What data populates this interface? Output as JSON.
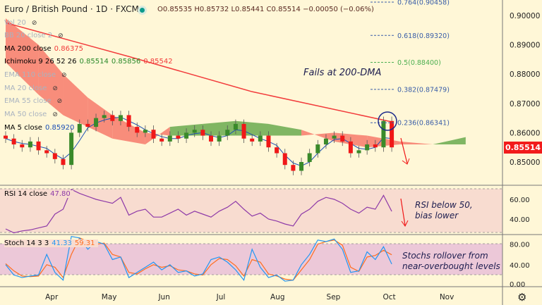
{
  "header": {
    "title": "Euro / British Pound · 1D · FXCM",
    "ohlc": "O0.85535 H0.85732 L0.85441 C0.85514 −0.00050 (−0.06%)"
  },
  "legend": [
    {
      "label": "Vol 20",
      "value": "",
      "hidden": true
    },
    {
      "label": "BB 20 close 2",
      "value": "",
      "hidden": true
    },
    {
      "label": "MA 200 close",
      "value": "0.86375",
      "color": "#f23b3b",
      "hidden": false
    },
    {
      "label": "Ichimoku 9 26 52 26",
      "value": "0.85514",
      "value2": "0.85856",
      "value3": "0.85542",
      "hidden": false
    },
    {
      "label": "EMA 110 close",
      "value": "",
      "hidden": true
    },
    {
      "label": "MA 20 close",
      "value": "",
      "hidden": true
    },
    {
      "label": "EMA 55 close",
      "value": "",
      "hidden": true
    },
    {
      "label": "MA 50 close",
      "value": "",
      "hidden": true
    },
    {
      "label": "MA 5 close",
      "value": "0.85920",
      "color": "#1b4fb6",
      "hidden": false
    }
  ],
  "annotations": {
    "main": "Fails at 200-DMA",
    "rsi_line1": "RSI below 50,",
    "rsi_line2": "bias lower",
    "stoch_line1": "Stochs rollover from",
    "stoch_line2": "near-overbought levels"
  },
  "rsi_legend": {
    "label": "RSI 14 close",
    "value": "47.80"
  },
  "stoch_legend": {
    "label": "Stoch 14 3 3",
    "k": "41.33",
    "d": "59.31"
  },
  "last_price": "0.85514",
  "colors": {
    "up": "#3a8a2a",
    "down": "#f01818",
    "ma200": "#f23b3b",
    "cloud_red": "#f77a6b",
    "cloud_green": "#6aaa4f",
    "rsi": "#8e3aa8",
    "stoch_k": "#2196f3",
    "stoch_d": "#ff6d1f"
  },
  "chart_data": {
    "type": "candlestick",
    "title": "Euro / British Pound · 1D · FXCM",
    "closes": [
      0.858,
      0.856,
      0.855,
      0.857,
      0.854,
      0.853,
      0.851,
      0.849,
      0.86,
      0.863,
      0.862,
      0.865,
      0.866,
      0.864,
      0.866,
      0.862,
      0.86,
      0.861,
      0.858,
      0.857,
      0.859,
      0.858,
      0.86,
      0.861,
      0.859,
      0.857,
      0.859,
      0.861,
      0.863,
      0.858,
      0.857,
      0.859,
      0.855,
      0.853,
      0.849,
      0.847,
      0.85,
      0.853,
      0.856,
      0.858,
      0.859,
      0.857,
      0.853,
      0.854,
      0.856,
      0.855,
      0.864,
      0.855
    ],
    "ma200": [
      [
        0,
        0.8975
      ],
      [
        15,
        0.886
      ],
      [
        30,
        0.874
      ],
      [
        47,
        0.8637
      ]
    ],
    "cloud_idx": [
      0,
      4,
      7,
      10,
      13,
      17,
      20,
      24,
      28,
      32,
      36,
      40,
      44,
      48,
      52,
      56
    ],
    "span_a": [
      0.884,
      0.873,
      0.866,
      0.862,
      0.858,
      0.856,
      0.862,
      0.863,
      0.864,
      0.863,
      0.861,
      0.857,
      0.855,
      0.856,
      0.856,
      0.8585
    ],
    "span_b": [
      0.899,
      0.89,
      0.88,
      0.872,
      0.866,
      0.86,
      0.859,
      0.859,
      0.859,
      0.859,
      0.859,
      0.86,
      0.859,
      0.857,
      0.856,
      0.856
    ],
    "price_ticks": [
      "0.90000",
      "0.89000",
      "0.88000",
      "0.87000",
      "0.86000",
      "0.85000"
    ],
    "fib": [
      {
        "label": "0.764(0.90458)",
        "value": 0.90458,
        "color": "#3a5ea8"
      },
      {
        "label": "0.618(0.89320)",
        "value": 0.8932,
        "color": "#3a5ea8"
      },
      {
        "label": "0.5(0.88400)",
        "value": 0.884,
        "color": "#4caf50"
      },
      {
        "label": "0.382(0.87479)",
        "value": 0.87479,
        "color": "#3a5ea8"
      },
      {
        "label": "0.236(0.86341)",
        "value": 0.86341,
        "color": "#3a5ea8"
      }
    ],
    "rsi": [
      30,
      26,
      28,
      29,
      31,
      33,
      45,
      50,
      70,
      66,
      63,
      60,
      58,
      56,
      62,
      44,
      48,
      50,
      42,
      42,
      46,
      50,
      44,
      48,
      45,
      42,
      48,
      52,
      58,
      50,
      43,
      46,
      40,
      38,
      35,
      33,
      45,
      50,
      58,
      62,
      60,
      56,
      50,
      46,
      52,
      50,
      64,
      47.8
    ],
    "rsi_ticks": [
      "60.00",
      "40.00"
    ],
    "stoch_k": [
      40,
      20,
      15,
      18,
      20,
      60,
      25,
      10,
      95,
      92,
      70,
      85,
      80,
      50,
      55,
      15,
      25,
      35,
      45,
      30,
      40,
      25,
      28,
      18,
      22,
      50,
      55,
      45,
      30,
      10,
      70,
      35,
      15,
      20,
      8,
      10,
      40,
      60,
      88,
      85,
      90,
      70,
      25,
      28,
      65,
      50,
      75,
      41.33
    ],
    "stoch_d": [
      42,
      28,
      18,
      17,
      18,
      40,
      35,
      15,
      60,
      92,
      85,
      80,
      82,
      60,
      55,
      25,
      22,
      32,
      40,
      35,
      38,
      30,
      28,
      22,
      20,
      40,
      52,
      50,
      38,
      18,
      50,
      45,
      22,
      18,
      12,
      10,
      30,
      50,
      80,
      85,
      88,
      78,
      35,
      27,
      55,
      58,
      68,
      59.31
    ],
    "stoch_ticks": [
      "80.00",
      "40.00",
      "0.00"
    ],
    "months": [
      {
        "label": "Apr",
        "idx": 5.6
      },
      {
        "label": "May",
        "idx": 12.6
      },
      {
        "label": "Jun",
        "idx": 19.3
      },
      {
        "label": "Jul",
        "idx": 26.2
      },
      {
        "label": "Aug",
        "idx": 33.1
      },
      {
        "label": "Sep",
        "idx": 39.9
      },
      {
        "label": "Oct",
        "idx": 46.7
      },
      {
        "label": "Nov",
        "idx": 53.7
      }
    ]
  }
}
